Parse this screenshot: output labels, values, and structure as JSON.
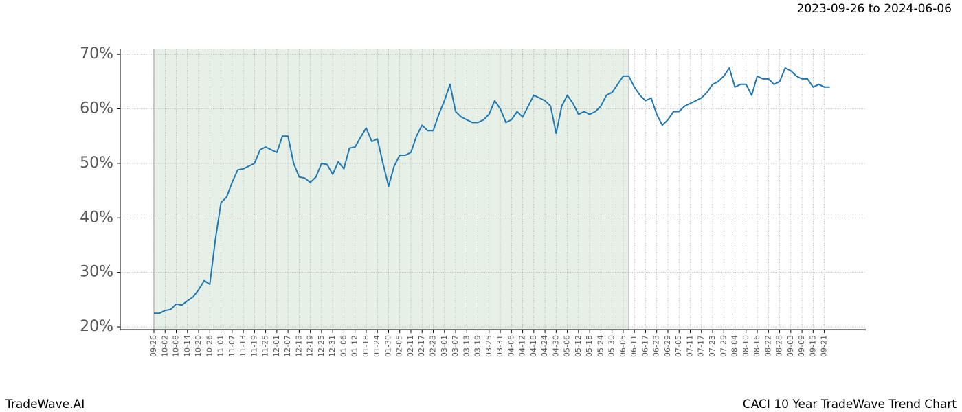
{
  "chart_data": {
    "type": "line",
    "date_range": "2023-09-26 to 2024-06-06",
    "footer_left": "TradeWave.AI",
    "footer_right": "CACI 10 Year TradeWave Trend Chart",
    "categories": [
      "09-26",
      null,
      "10-02",
      null,
      "10-08",
      null,
      "10-14",
      null,
      "10-20",
      null,
      "10-26",
      null,
      "11-01",
      null,
      "11-07",
      null,
      "11-13",
      null,
      "11-19",
      null,
      "11-25",
      null,
      "12-01",
      null,
      "12-07",
      null,
      "12-13",
      null,
      "12-19",
      null,
      "12-25",
      null,
      "12-31",
      null,
      "01-06",
      null,
      "01-12",
      null,
      "01-18",
      null,
      "01-24",
      null,
      "01-30",
      null,
      "02-05",
      null,
      "02-11",
      null,
      "02-17",
      null,
      "02-23",
      null,
      "03-01",
      null,
      "03-07",
      null,
      "03-13",
      null,
      "03-19",
      null,
      "03-25",
      null,
      "03-31",
      null,
      "04-06",
      null,
      "04-12",
      null,
      "04-18",
      null,
      "04-24",
      null,
      "04-30",
      null,
      "05-06",
      null,
      "05-12",
      null,
      "05-18",
      null,
      "05-24",
      null,
      "05-30",
      null,
      "06-05",
      null,
      "06-11",
      null,
      "06-17",
      null,
      "06-23",
      null,
      "06-29",
      null,
      "07-05",
      null,
      "07-11",
      null,
      "07-17",
      null,
      "07-23",
      null,
      "07-29",
      null,
      "08-04",
      null,
      "08-10",
      null,
      "08-16",
      null,
      "08-22",
      null,
      "08-28",
      null,
      "09-03",
      null,
      "09-09",
      null,
      "09-15",
      null,
      "09-21",
      null
    ],
    "series": [
      {
        "color": "#1f77b4",
        "values": [
          22.5,
          22.5,
          23,
          23.2,
          24.2,
          24,
          24.8,
          25.5,
          26.8,
          28.5,
          27.8,
          36,
          42.8,
          43.8,
          46.5,
          48.8,
          49,
          49.5,
          50,
          52.5,
          53,
          52.5,
          52,
          55,
          55,
          50,
          47.5,
          47.3,
          46.5,
          47.5,
          50,
          49.8,
          48,
          50.3,
          49,
          52.8,
          53,
          54.8,
          56.5,
          54,
          54.5,
          50,
          45.8,
          49.5,
          51.5,
          51.5,
          52,
          55,
          57,
          56,
          56,
          59,
          61.5,
          64.5,
          59.5,
          58.5,
          58,
          57.5,
          57.5,
          58,
          59,
          61.5,
          60,
          57.5,
          58,
          59.5,
          58.5,
          60.5,
          62.5,
          62,
          61.5,
          60.5,
          55.5,
          60.5,
          62.5,
          61,
          59,
          59.5,
          59,
          59.5,
          60.5,
          62.5,
          63,
          64.5,
          66,
          66,
          64,
          62.5,
          61.5,
          62,
          59,
          57,
          58,
          59.5,
          59.5,
          60.5,
          61,
          61.5,
          62,
          63,
          64.5,
          65,
          66,
          67.5,
          64,
          64.5,
          64.5,
          62.5,
          66,
          65.5,
          65.5,
          64.5,
          65,
          67.5,
          67,
          66,
          65.5,
          65.5,
          64,
          64.5,
          64,
          64
        ]
      }
    ],
    "shaded_span": [
      0,
      85
    ],
    "shade_color": "#e6f0e6",
    "ylim": [
      19.5,
      70.9
    ],
    "yticks": [
      {
        "value": 20,
        "label": "20%"
      },
      {
        "value": 30,
        "label": "30%"
      },
      {
        "value": 40,
        "label": "40%"
      },
      {
        "value": 50,
        "label": "50%"
      },
      {
        "value": 60,
        "label": "60%"
      },
      {
        "value": 70,
        "label": "70%"
      }
    ],
    "grid": true
  }
}
